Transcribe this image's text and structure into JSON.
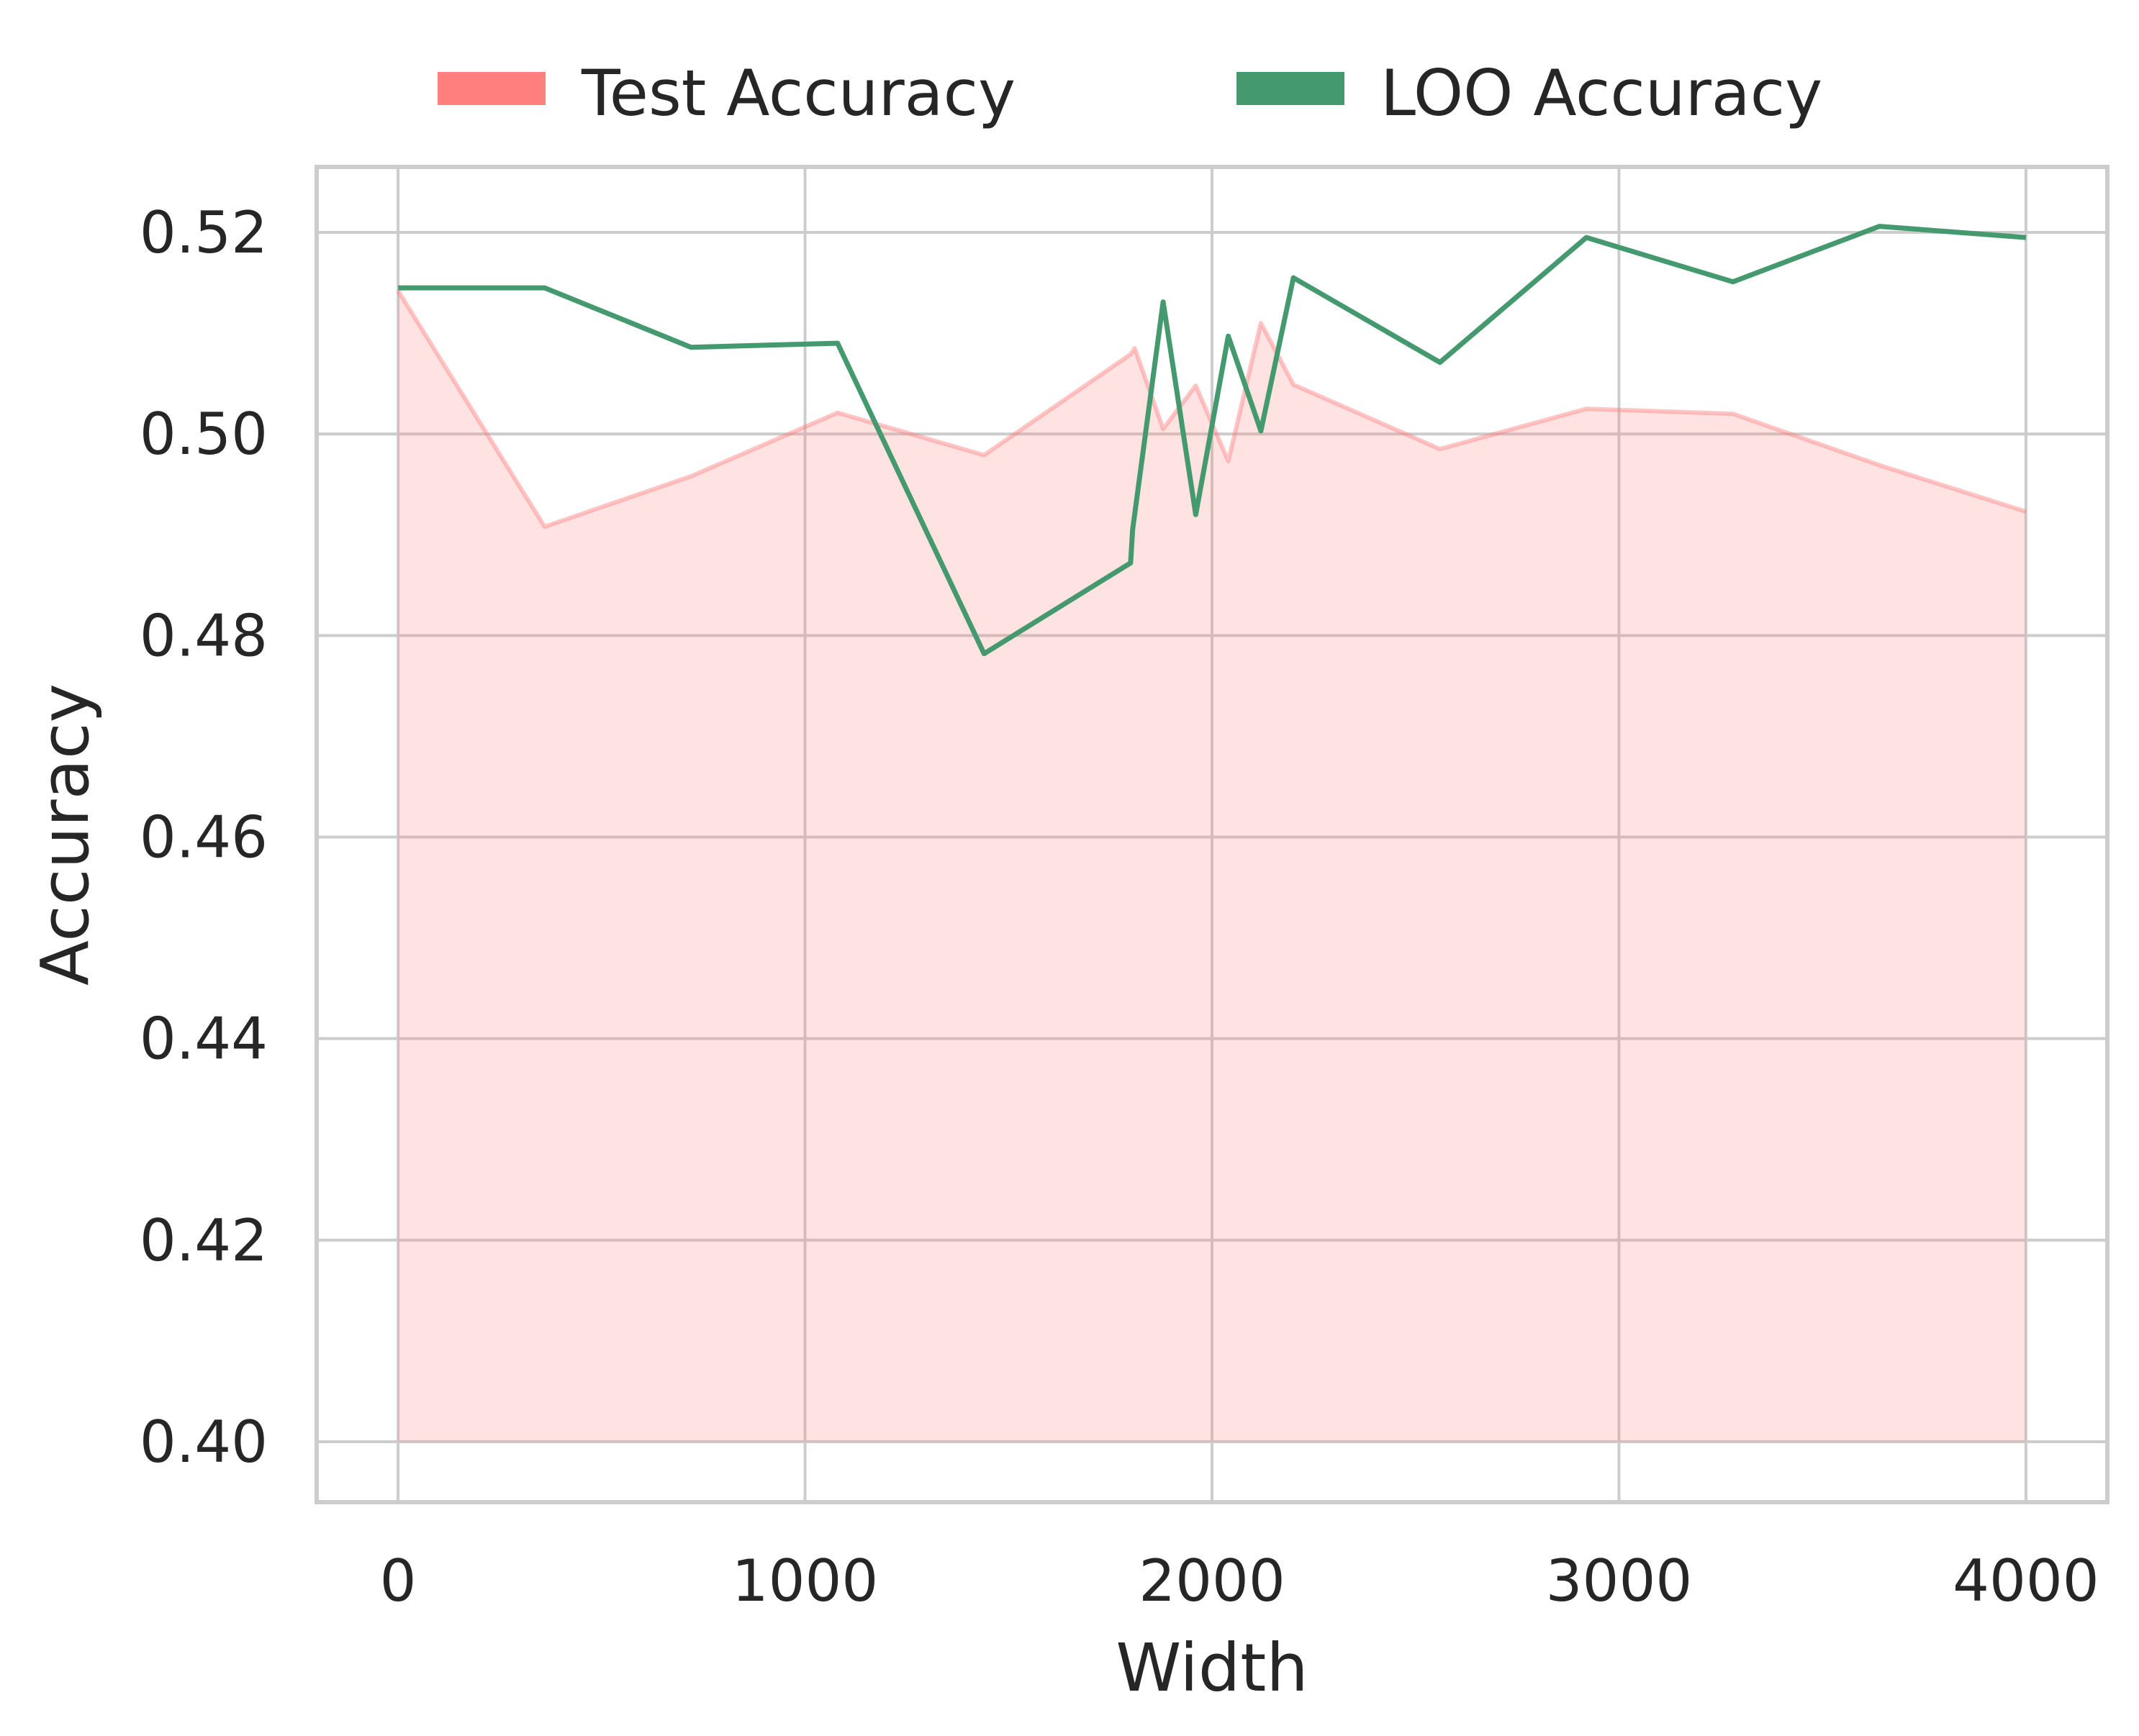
{
  "chart_data": {
    "type": "area",
    "xlabel": "Width",
    "ylabel": "Accuracy",
    "xlim": [
      -200,
      4200
    ],
    "ylim": [
      0.394,
      0.5265
    ],
    "xticks": [
      0,
      1000,
      2000,
      3000,
      4000
    ],
    "xtick_labels": [
      "0",
      "1000",
      "2000",
      "3000",
      "4000"
    ],
    "yticks": [
      0.4,
      0.42,
      0.44,
      0.46,
      0.48,
      0.5,
      0.52
    ],
    "ytick_labels": [
      "0.40",
      "0.42",
      "0.44",
      "0.46",
      "0.48",
      "0.50",
      "0.52"
    ],
    "fill_baseline": 0.4,
    "grid": true,
    "legend": {
      "placement": "top-center-outside",
      "columns": 2
    },
    "series": [
      {
        "name": "Test Accuracy",
        "style": "filled-area",
        "color": "#ff7f7f",
        "x": [
          0,
          360,
          720,
          1080,
          1440,
          1800,
          1810,
          1880,
          1960,
          2040,
          2120,
          2200,
          2560,
          2920,
          3280,
          3640,
          4000
        ],
        "y": [
          0.5142,
          0.4908,
          0.4958,
          0.5021,
          0.4979,
          0.5079,
          0.5085,
          0.5005,
          0.5048,
          0.4973,
          0.511,
          0.5049,
          0.4985,
          0.5025,
          0.502,
          0.4969,
          0.4923
        ]
      },
      {
        "name": "LOO Accuracy",
        "style": "line",
        "color": "#45996f",
        "x": [
          0,
          360,
          720,
          1080,
          1440,
          1800,
          1805,
          1880,
          1960,
          2040,
          2120,
          2200,
          2560,
          2920,
          3280,
          3640,
          4000
        ],
        "y": [
          0.5145,
          0.5145,
          0.5086,
          0.509,
          0.4782,
          0.4872,
          0.4905,
          0.5131,
          0.492,
          0.5097,
          0.5003,
          0.5155,
          0.5071,
          0.5195,
          0.5151,
          0.5206,
          0.5195
        ]
      }
    ]
  }
}
